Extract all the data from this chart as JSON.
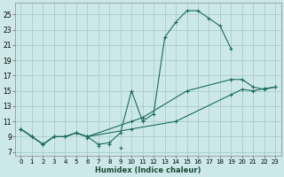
{
  "xlabel": "Humidex (Indice chaleur)",
  "bg_color": "#cde8e8",
  "grid_color": "#aacccc",
  "line_color": "#1a6b5a",
  "xlim": [
    -0.5,
    23.5
  ],
  "ylim": [
    6.5,
    26.5
  ],
  "xticks": [
    0,
    1,
    2,
    3,
    4,
    5,
    6,
    7,
    8,
    9,
    10,
    11,
    12,
    13,
    14,
    15,
    16,
    17,
    18,
    19,
    20,
    21,
    22,
    23
  ],
  "yticks": [
    7,
    9,
    11,
    13,
    15,
    17,
    19,
    21,
    23,
    25
  ],
  "series1_x": [
    0,
    1,
    2,
    3,
    4,
    5,
    6,
    7,
    8,
    9,
    10,
    11,
    12,
    13,
    14,
    15,
    16,
    17,
    18,
    19
  ],
  "series1_y": [
    10,
    9,
    8,
    9,
    9,
    9.5,
    9,
    8,
    8.2,
    9.5,
    15,
    11,
    12,
    22,
    24,
    25.5,
    25.5,
    24.5,
    23.5,
    20.5
  ],
  "series2_x": [
    0,
    1,
    2,
    3,
    4,
    5,
    6,
    10,
    11,
    15,
    19,
    20,
    21,
    22,
    23
  ],
  "series2_y": [
    10,
    9,
    8,
    9,
    9,
    9.5,
    9,
    11,
    11.5,
    15,
    16.5,
    16.5,
    15.5,
    15.2,
    15.5
  ],
  "series3_x": [
    0,
    1,
    2,
    3,
    4,
    5,
    6,
    10,
    14,
    19,
    20,
    21,
    22,
    23
  ],
  "series3_y": [
    10,
    9,
    8,
    9,
    9,
    9.5,
    9,
    10,
    11,
    14.5,
    15.2,
    15.0,
    15.3,
    15.5
  ],
  "scatter_x": [
    6,
    7,
    8,
    9
  ],
  "scatter_y": [
    8.8,
    7.8,
    8.0,
    7.5
  ]
}
